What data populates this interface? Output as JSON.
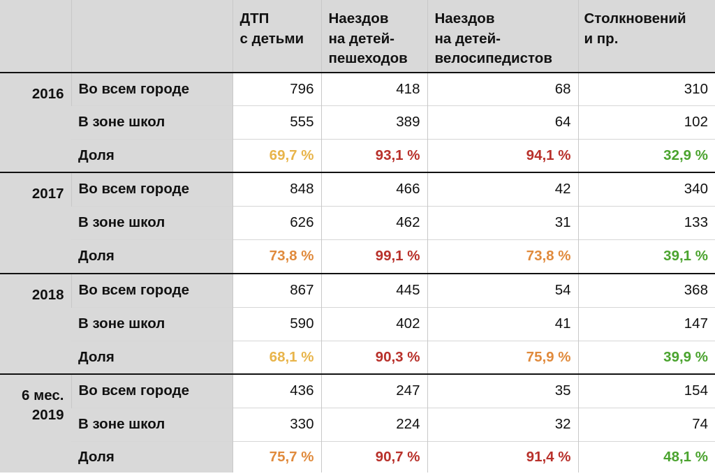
{
  "header": {
    "blank": "",
    "columns": [
      {
        "line1": "ДТП",
        "line2": "с детьми",
        "line3": ""
      },
      {
        "line1": "Наездов",
        "line2": "на детей-",
        "line3": "пешеходов"
      },
      {
        "line1": "Наездов",
        "line2": "на детей-",
        "line3": "велосипедистов"
      },
      {
        "line1": "Столкновений",
        "line2": "и пр.",
        "line3": ""
      }
    ]
  },
  "colors": {
    "yellow": "#e8b44a",
    "orange": "#e08a3c",
    "red": "#b8302a",
    "green": "#4aa32e",
    "header_bg": "#d9d9d9",
    "separator": "#111111"
  },
  "groups": [
    {
      "year": "2016",
      "rows": [
        {
          "label": "Во всем городе",
          "values": [
            "796",
            "418",
            "68",
            "310"
          ]
        },
        {
          "label": "В зоне школ",
          "values": [
            "555",
            "389",
            "64",
            "102"
          ]
        },
        {
          "label": "Доля",
          "values": [
            "69,7 %",
            "93,1 %",
            "94,1 %",
            "32,9 %"
          ],
          "colors": [
            "#e8b44a",
            "#b8302a",
            "#b8302a",
            "#4aa32e"
          ]
        }
      ]
    },
    {
      "year": "2017",
      "rows": [
        {
          "label": "Во всем городе",
          "values": [
            "848",
            "466",
            "42",
            "340"
          ]
        },
        {
          "label": "В зоне школ",
          "values": [
            "626",
            "462",
            "31",
            "133"
          ]
        },
        {
          "label": "Доля",
          "values": [
            "73,8 %",
            "99,1 %",
            "73,8 %",
            "39,1 %"
          ],
          "colors": [
            "#e08a3c",
            "#b8302a",
            "#e08a3c",
            "#4aa32e"
          ]
        }
      ]
    },
    {
      "year": "2018",
      "rows": [
        {
          "label": "Во всем городе",
          "values": [
            "867",
            "445",
            "54",
            "368"
          ]
        },
        {
          "label": "В зоне школ",
          "values": [
            "590",
            "402",
            "41",
            "147"
          ]
        },
        {
          "label": "Доля",
          "values": [
            "68,1 %",
            "90,3 %",
            "75,9 %",
            "39,9 %"
          ],
          "colors": [
            "#e8b44a",
            "#b8302a",
            "#e08a3c",
            "#4aa32e"
          ]
        }
      ]
    },
    {
      "year": "6 мес. 2019",
      "rows": [
        {
          "label": "Во всем городе",
          "values": [
            "436",
            "247",
            "35",
            "154"
          ]
        },
        {
          "label": "В зоне школ",
          "values": [
            "330",
            "224",
            "32",
            "74"
          ]
        },
        {
          "label": "Доля",
          "values": [
            "75,7 %",
            "90,7 %",
            "91,4 %",
            "48,1 %"
          ],
          "colors": [
            "#e08a3c",
            "#b8302a",
            "#b8302a",
            "#4aa32e"
          ]
        }
      ]
    }
  ]
}
